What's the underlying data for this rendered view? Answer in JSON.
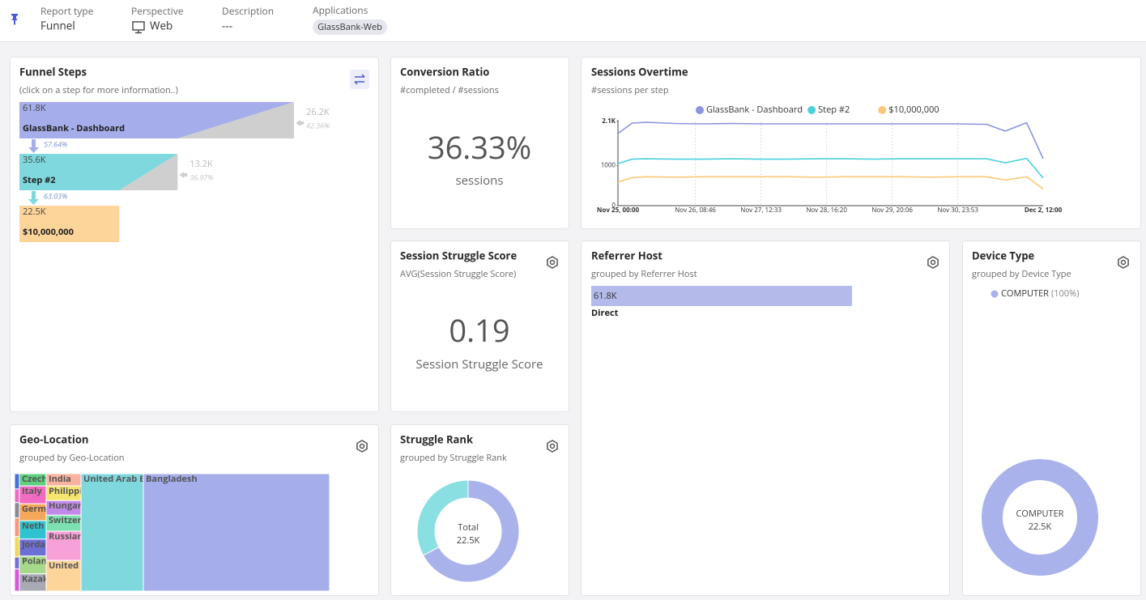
{
  "header": {
    "report_type": {
      "label": "Report type",
      "value": "Funnel"
    },
    "perspective": {
      "label": "Perspective",
      "value": "Web"
    },
    "description": {
      "label": "Description",
      "value": "---"
    },
    "applications": {
      "label": "Applications",
      "value": "GlassBank-Web"
    }
  },
  "funnel": {
    "title": "Funnel Steps",
    "subtitle": "(click on a step for more information..)",
    "categories": [
      "GlassBank - Dashboard",
      "Step #2",
      "$10,000,000"
    ],
    "colors": [
      "#a5aeea",
      "#7ed8de",
      "#fdd59a"
    ],
    "values": [
      61800,
      35600,
      22500
    ],
    "value_labels": [
      "61.8K",
      "35.6K",
      "22.5K"
    ],
    "dropoffs": [
      26200,
      13200
    ],
    "dropoff_labels": [
      "26.2K",
      "13.2K"
    ],
    "dropoff_percents": [
      "42.36%",
      "36.97%"
    ],
    "conversion_percents": [
      "57.64%",
      "63.03%"
    ]
  },
  "conversion_ratio": {
    "title": "Conversion Ratio",
    "subtitle": "#completed / #sessions",
    "value": "36.33%",
    "unit": "sessions"
  },
  "sessions_overtime": {
    "type": "line",
    "title": "Sessions Overtime",
    "subtitle": "#sessions per step",
    "x": [
      0,
      6,
      12,
      24,
      36,
      48,
      60,
      72,
      84,
      96,
      108,
      120,
      132,
      144,
      156,
      164,
      173,
      180
    ],
    "series": [
      {
        "name": "GlassBank - Dashboard",
        "color": "#8b93e0",
        "values": [
          1800,
          2060,
          2080,
          2050,
          2040,
          2050,
          2040,
          2040,
          2040,
          2040,
          2040,
          2040,
          2040,
          2040,
          2030,
          1860,
          2070,
          1170
        ]
      },
      {
        "name": "Step #2",
        "color": "#4fd0dc",
        "values": [
          1050,
          1160,
          1170,
          1160,
          1160,
          1170,
          1160,
          1160,
          1170,
          1170,
          1160,
          1170,
          1170,
          1170,
          1170,
          1070,
          1180,
          690
        ]
      },
      {
        "name": "$10,000,000",
        "color": "#f9c97a",
        "values": [
          590,
          700,
          720,
          710,
          720,
          720,
          720,
          720,
          710,
          720,
          720,
          720,
          710,
          720,
          720,
          640,
          720,
          420
        ]
      }
    ],
    "xlim": [
      0,
      180
    ],
    "xticks": [
      {
        "value": 0,
        "label": "Nov 25, 00:00"
      },
      {
        "value": 32.77,
        "label": "Nov 26, 08:46"
      },
      {
        "value": 60.55,
        "label": "Nov 27, 12:33"
      },
      {
        "value": 88.33,
        "label": "Nov 28, 16:20"
      },
      {
        "value": 116.1,
        "label": "Nov 29, 20:06"
      },
      {
        "value": 143.88,
        "label": "Nov 30, 23:53"
      },
      {
        "value": 180,
        "label": "Dec 2, 12:00"
      }
    ],
    "ylim": [
      0,
      2100
    ],
    "yticks": [
      0,
      1000,
      {
        "value": 2100,
        "label": "2.1K"
      }
    ],
    "grid": true
  },
  "struggle_score": {
    "title": "Session Struggle Score",
    "subtitle": "AVG(Session Struggle Score)",
    "value": "0.19",
    "label": "Session Struggle Score"
  },
  "referrer_host": {
    "title": "Referrer Host",
    "subtitle": "grouped by Referrer Host",
    "categories": [
      "Direct"
    ],
    "values": [
      61800
    ],
    "value_labels": [
      "61.8K"
    ],
    "color": "#b4baea"
  },
  "device_type": {
    "title": "Device Type",
    "subtitle": "grouped by Device Type",
    "categories": [
      "COMPUTER"
    ],
    "percent_labels": [
      "(100%)"
    ],
    "values": [
      22500
    ],
    "value_labels": [
      "22.5K"
    ],
    "color": "#aab2ec"
  },
  "geo_location": {
    "title": "Geo-Location",
    "subtitle": "grouped by Geo-Location",
    "columns": [
      [
        {
          "label": null,
          "value": 45,
          "color": "#4a6fd6"
        },
        {
          "label": null,
          "value": 40,
          "color": "#f06bc1"
        },
        {
          "label": null,
          "value": 45,
          "color": "#8a8a99"
        },
        {
          "label": null,
          "value": 55,
          "color": "#f59a7a"
        },
        {
          "label": null,
          "value": 60,
          "color": "#f2d85a"
        },
        {
          "label": null,
          "value": 35,
          "color": "#7a6fd6"
        },
        {
          "label": null,
          "value": 65,
          "color": "#d45ad8"
        }
      ],
      [
        {
          "label": "Czech",
          "value": 200,
          "color": "#5fd07f"
        },
        {
          "label": "Italy",
          "value": 290,
          "color": "#f06bc1"
        },
        {
          "label": "Germ",
          "value": 275,
          "color": "#f5a85a"
        },
        {
          "label": "Neth",
          "value": 300,
          "color": "#2fc3d0"
        },
        {
          "label": "Jorda",
          "value": 275,
          "color": "#6b6fd6"
        },
        {
          "label": "Polan",
          "value": 290,
          "color": "#a7d98a"
        },
        {
          "label": "Kazak",
          "value": 280,
          "color": "#a9a9b5"
        }
      ],
      [
        {
          "label": "India",
          "value": 260,
          "color": "#f9b2a0"
        },
        {
          "label": "Philippi",
          "value": 310,
          "color": "#f5e46e"
        },
        {
          "label": "Hungar",
          "value": 310,
          "color": "#c28ae8"
        },
        {
          "label": "Switzer",
          "value": 340,
          "color": "#7de0b0"
        },
        {
          "label": "Russian",
          "value": 620,
          "color": "#f8a0d8"
        },
        {
          "label": "United",
          "value": 650,
          "color": "#fdd59a"
        }
      ],
      [
        {
          "label": "United Arab E",
          "value": 4450,
          "color": "#7ed8de"
        }
      ],
      [
        {
          "label": "Bangladesh",
          "value": 13300,
          "color": "#a5aeea"
        }
      ]
    ]
  },
  "struggle_rank": {
    "title": "Struggle Rank",
    "subtitle": "grouped by Struggle Rank",
    "values": [
      15100,
      7400
    ],
    "colors": [
      "#aab2ec",
      "#8adfe3"
    ],
    "total_label": "Total",
    "total_value": "22.5K"
  }
}
